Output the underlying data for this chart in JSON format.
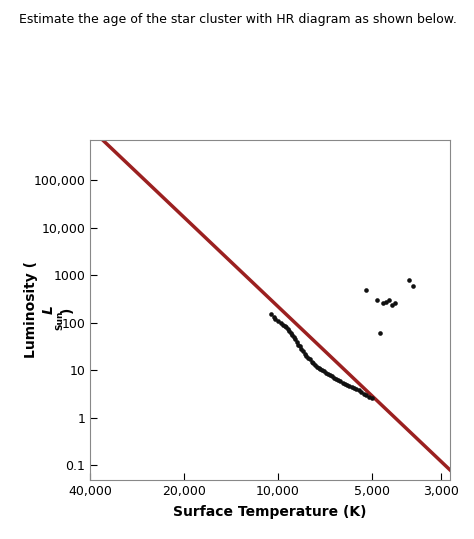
{
  "title": "Estimate the age of the star cluster with HR diagram as shown below.",
  "xlabel": "Surface Temperature (K)",
  "xlim_left": 40000,
  "xlim_right": 2800,
  "ylim_bottom": 0.05,
  "ylim_top": 700000,
  "xticks": [
    40000,
    20000,
    10000,
    5000,
    3000
  ],
  "yticks": [
    0.1,
    1,
    10,
    100,
    1000,
    10000,
    100000
  ],
  "ytick_labels": [
    "0.1",
    "1",
    "10",
    "100",
    "1000",
    "10,000",
    "100,000"
  ],
  "background_color": "#ffffff",
  "line_color": "#9b2020",
  "dot_color": "#111111",
  "line_x1": 40000,
  "line_y1_exp": 6.1,
  "line_x2": 2700,
  "line_y2_exp": -1.2,
  "scatter_points": [
    [
      10500,
      150
    ],
    [
      10300,
      130
    ],
    [
      10200,
      120
    ],
    [
      10000,
      110
    ],
    [
      9800,
      100
    ],
    [
      9600,
      90
    ],
    [
      9500,
      85
    ],
    [
      9400,
      80
    ],
    [
      9300,
      75
    ],
    [
      9200,
      68
    ],
    [
      9100,
      60
    ],
    [
      9000,
      55
    ],
    [
      8900,
      50
    ],
    [
      8800,
      45
    ],
    [
      8700,
      40
    ],
    [
      8600,
      35
    ],
    [
      8500,
      32
    ],
    [
      8400,
      28
    ],
    [
      8300,
      25
    ],
    [
      8200,
      22
    ],
    [
      8100,
      20
    ],
    [
      8000,
      18
    ],
    [
      7900,
      17
    ],
    [
      7800,
      15
    ],
    [
      7700,
      14
    ],
    [
      7600,
      13
    ],
    [
      7500,
      12
    ],
    [
      7400,
      11
    ],
    [
      7300,
      10.5
    ],
    [
      7200,
      10
    ],
    [
      7100,
      9.5
    ],
    [
      7000,
      9
    ],
    [
      6900,
      8.5
    ],
    [
      6800,
      8
    ],
    [
      6700,
      7.5
    ],
    [
      6600,
      7
    ],
    [
      6500,
      6.5
    ],
    [
      6400,
      6.2
    ],
    [
      6300,
      6.0
    ],
    [
      6200,
      5.5
    ],
    [
      6100,
      5.2
    ],
    [
      6000,
      5.0
    ],
    [
      5900,
      4.8
    ],
    [
      5800,
      4.5
    ],
    [
      5700,
      4.2
    ],
    [
      5600,
      4.0
    ],
    [
      5500,
      3.8
    ],
    [
      5400,
      3.5
    ],
    [
      5300,
      3.2
    ],
    [
      5200,
      3.0
    ],
    [
      5100,
      2.8
    ],
    [
      5000,
      2.6
    ],
    [
      5200,
      500
    ],
    [
      4800,
      310
    ],
    [
      4600,
      260
    ],
    [
      4500,
      280
    ],
    [
      4400,
      300
    ],
    [
      4300,
      240
    ],
    [
      4200,
      260
    ],
    [
      3800,
      800
    ],
    [
      3700,
      600
    ],
    [
      4700,
      60
    ]
  ]
}
